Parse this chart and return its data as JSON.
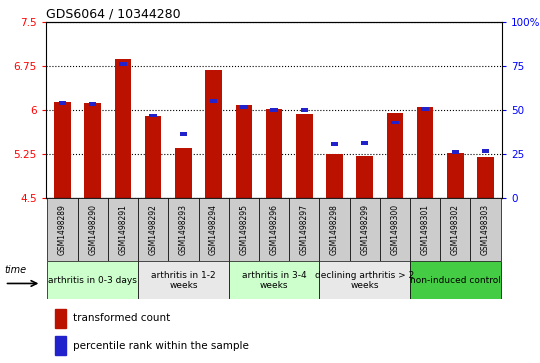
{
  "title": "GDS6064 / 10344280",
  "samples": [
    "GSM1498289",
    "GSM1498290",
    "GSM1498291",
    "GSM1498292",
    "GSM1498293",
    "GSM1498294",
    "GSM1498295",
    "GSM1498296",
    "GSM1498297",
    "GSM1498298",
    "GSM1498299",
    "GSM1498300",
    "GSM1498301",
    "GSM1498302",
    "GSM1498303"
  ],
  "red_values": [
    6.13,
    6.12,
    6.87,
    5.9,
    5.35,
    6.68,
    6.08,
    6.01,
    5.93,
    5.25,
    5.22,
    5.95,
    6.05,
    5.27,
    5.2
  ],
  "blue_values": [
    6.08,
    6.07,
    6.75,
    5.87,
    5.55,
    6.12,
    6.02,
    5.96,
    5.96,
    5.38,
    5.4,
    5.75,
    5.98,
    5.25,
    5.27
  ],
  "ymin": 4.5,
  "ymax": 7.5,
  "yticks": [
    4.5,
    5.25,
    6.0,
    6.75,
    7.5
  ],
  "ytick_labels": [
    "4.5",
    "5.25",
    "6",
    "6.75",
    "7.5"
  ],
  "right_yticks": [
    0,
    25,
    50,
    75,
    100
  ],
  "right_ytick_labels": [
    "0",
    "25",
    "50",
    "75",
    "100%"
  ],
  "bar_color": "#bb1100",
  "blue_color": "#2222cc",
  "groups": [
    {
      "label": "arthritis in 0-3 days",
      "start": 0,
      "end": 3,
      "color": "#ccffcc"
    },
    {
      "label": "arthritis in 1-2\nweeks",
      "start": 3,
      "end": 6,
      "color": "#e8e8e8"
    },
    {
      "label": "arthritis in 3-4\nweeks",
      "start": 6,
      "end": 9,
      "color": "#ccffcc"
    },
    {
      "label": "declining arthritis > 2\nweeks",
      "start": 9,
      "end": 12,
      "color": "#e8e8e8"
    },
    {
      "label": "non-induced control",
      "start": 12,
      "end": 15,
      "color": "#44cc44"
    }
  ],
  "legend_items": [
    {
      "label": "transformed count",
      "color": "#bb1100"
    },
    {
      "label": "percentile rank within the sample",
      "color": "#2222cc"
    }
  ],
  "time_label": "time",
  "background_color": "#ffffff",
  "sample_box_color": "#cccccc"
}
